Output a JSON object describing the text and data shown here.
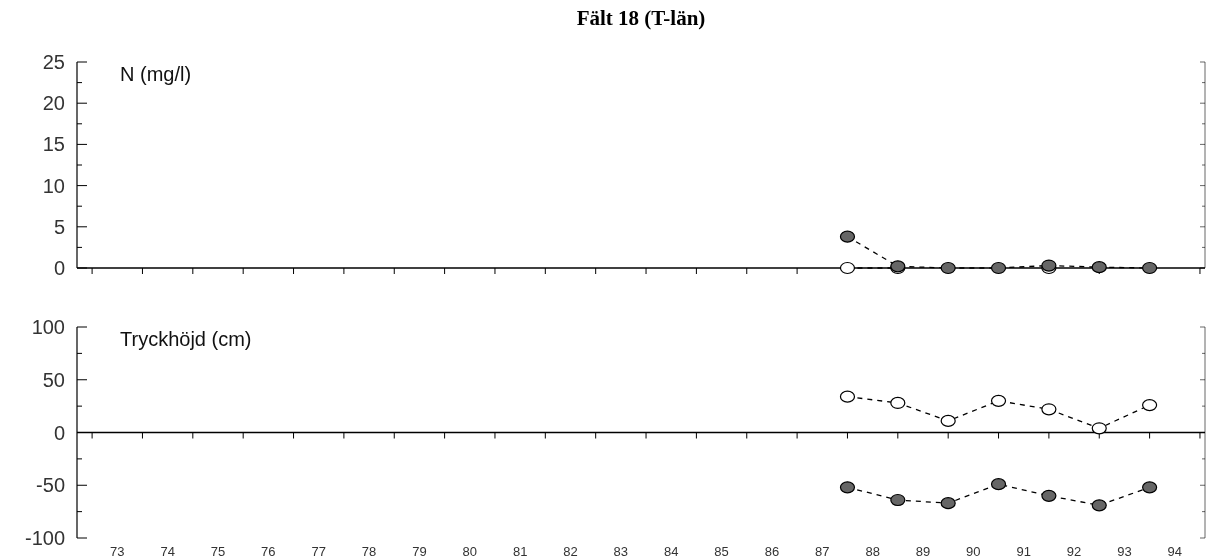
{
  "chart_data": [
    {
      "type": "line",
      "title": "Fält 18 (T-län)",
      "ylabel": "N (mg/l)",
      "x": [
        87.5,
        88.5,
        89.5,
        90.5,
        91.5,
        92.5,
        93.5
      ],
      "series": [
        {
          "color": "#ffffff",
          "values": [
            0,
            0,
            null,
            null,
            0,
            null,
            null
          ]
        },
        {
          "color": "#666666",
          "values": [
            3.8,
            0.2,
            0,
            0,
            0.3,
            0.1,
            0
          ]
        }
      ],
      "xlim": [
        72.2,
        94.6
      ],
      "xticks": [
        {
          "value": 72.5,
          "label": null
        },
        {
          "value": 73.5,
          "label": null
        },
        {
          "value": 74.5,
          "label": null
        },
        {
          "value": 75.5,
          "label": null
        },
        {
          "value": 76.5,
          "label": null
        },
        {
          "value": 77.5,
          "label": null
        },
        {
          "value": 78.5,
          "label": null
        },
        {
          "value": 79.5,
          "label": null
        },
        {
          "value": 80.5,
          "label": null
        },
        {
          "value": 81.5,
          "label": null
        },
        {
          "value": 82.5,
          "label": null
        },
        {
          "value": 83.5,
          "label": null
        },
        {
          "value": 84.5,
          "label": null
        },
        {
          "value": 85.5,
          "label": null
        },
        {
          "value": 86.5,
          "label": null
        },
        {
          "value": 87.5,
          "label": null
        },
        {
          "value": 88.5,
          "label": null
        },
        {
          "value": 89.5,
          "label": null
        },
        {
          "value": 90.5,
          "label": null
        },
        {
          "value": 91.5,
          "label": null
        },
        {
          "value": 92.5,
          "label": null
        },
        {
          "value": 93.5,
          "label": null
        },
        {
          "value": 94.5,
          "label": null
        }
      ],
      "ylim": [
        0,
        25
      ],
      "yticks": [
        0,
        {
          "value": 2.5,
          "label": null
        },
        5,
        {
          "value": 7.5,
          "label": null
        },
        10,
        {
          "value": 12.5,
          "label": null
        },
        15,
        {
          "value": 17.5,
          "label": null
        },
        20,
        {
          "value": 22.5,
          "label": null
        },
        25
      ],
      "tick_labels": "y",
      "marker": "circle",
      "line_style": "dashed"
    },
    {
      "type": "line",
      "ylabel": "Tryckhöjd (cm)",
      "x": [
        87.5,
        88.5,
        89.5,
        90.5,
        91.5,
        92.5,
        93.5
      ],
      "series": [
        {
          "color": "#ffffff",
          "values": [
            34,
            28,
            11,
            30,
            22,
            4,
            26
          ]
        },
        {
          "color": "#666666",
          "values": [
            -52,
            -64,
            -67,
            -49,
            -60,
            -69,
            -52
          ]
        }
      ],
      "xlim": [
        72.2,
        94.6
      ],
      "xticks": [
        {
          "value": 72.5,
          "label": null
        },
        {
          "value": 73,
          "label": "73"
        },
        {
          "value": 73.5,
          "label": null
        },
        {
          "value": 74,
          "label": "74"
        },
        {
          "value": 74.5,
          "label": null
        },
        {
          "value": 75,
          "label": "75"
        },
        {
          "value": 75.5,
          "label": null
        },
        {
          "value": 76,
          "label": "76"
        },
        {
          "value": 76.5,
          "label": null
        },
        {
          "value": 77,
          "label": "77"
        },
        {
          "value": 77.5,
          "label": null
        },
        {
          "value": 78,
          "label": "78"
        },
        {
          "value": 78.5,
          "label": null
        },
        {
          "value": 79,
          "label": "79"
        },
        {
          "value": 79.5,
          "label": null
        },
        {
          "value": 80,
          "label": "80"
        },
        {
          "value": 80.5,
          "label": null
        },
        {
          "value": 81,
          "label": "81"
        },
        {
          "value": 81.5,
          "label": null
        },
        {
          "value": 82,
          "label": "82"
        },
        {
          "value": 82.5,
          "label": null
        },
        {
          "value": 83,
          "label": "83"
        },
        {
          "value": 83.5,
          "label": null
        },
        {
          "value": 84,
          "label": "84"
        },
        {
          "value": 84.5,
          "label": null
        },
        {
          "value": 85,
          "label": "85"
        },
        {
          "value": 85.5,
          "label": null
        },
        {
          "value": 86,
          "label": "86"
        },
        {
          "value": 86.5,
          "label": null
        },
        {
          "value": 87,
          "label": "87"
        },
        {
          "value": 87.5,
          "label": null
        },
        {
          "value": 88,
          "label": "88"
        },
        {
          "value": 88.5,
          "label": null
        },
        {
          "value": 89,
          "label": "89"
        },
        {
          "value": 89.5,
          "label": null
        },
        {
          "value": 90,
          "label": "90"
        },
        {
          "value": 90.5,
          "label": null
        },
        {
          "value": 91,
          "label": "91"
        },
        {
          "value": 91.5,
          "label": null
        },
        {
          "value": 92,
          "label": "92"
        },
        {
          "value": 92.5,
          "label": null
        },
        {
          "value": 93,
          "label": "93"
        },
        {
          "value": 93.5,
          "label": null
        },
        {
          "value": 94,
          "label": "94"
        },
        {
          "value": 94.5,
          "label": null
        }
      ],
      "ylim": [
        -100,
        100
      ],
      "yticks": [
        -100,
        {
          "value": -75,
          "label": null
        },
        -50,
        {
          "value": -25,
          "label": null
        },
        0,
        {
          "value": 25,
          "label": null
        },
        50,
        {
          "value": 75,
          "label": null
        },
        100
      ],
      "marker": "circle",
      "line_style": "dashed"
    }
  ]
}
